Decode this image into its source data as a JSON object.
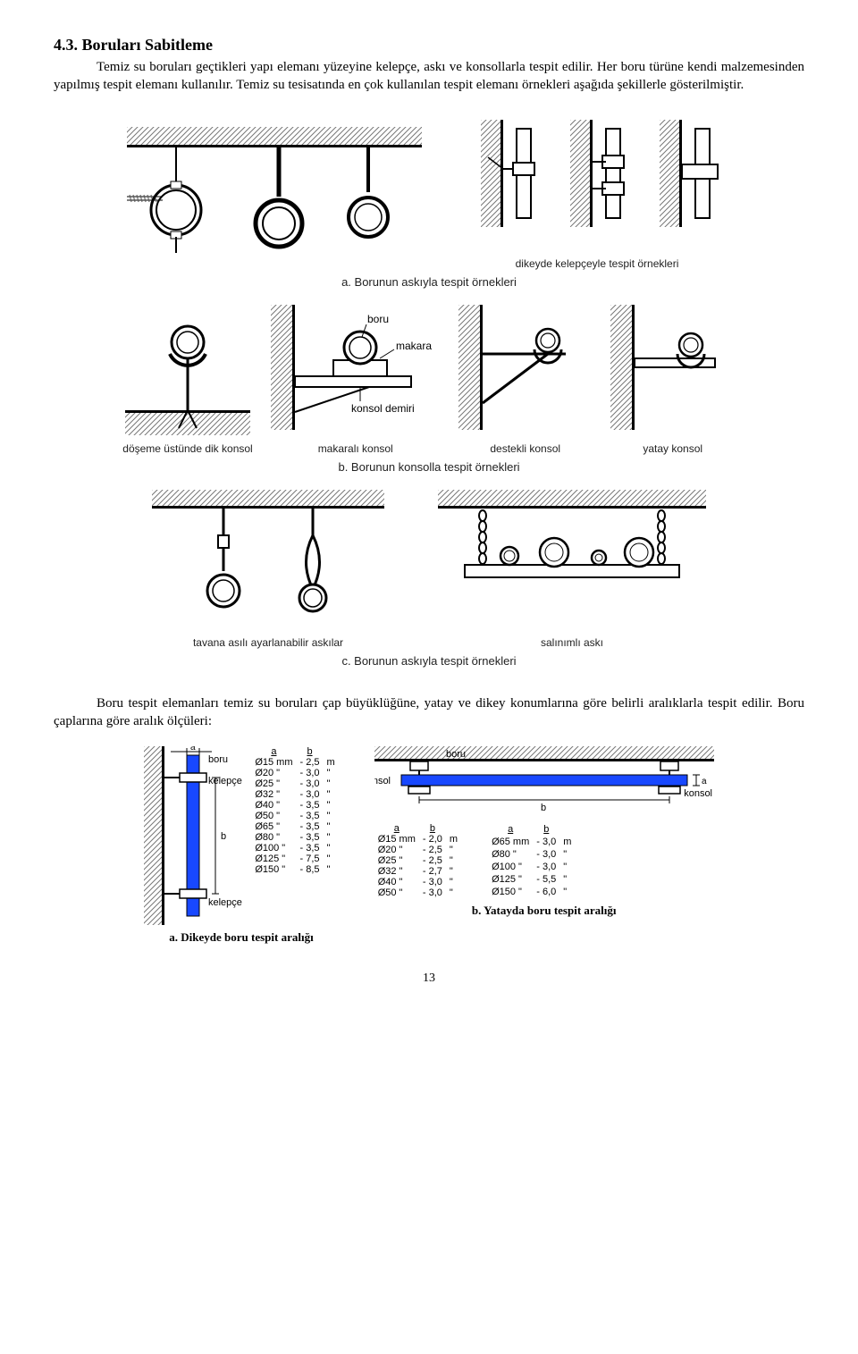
{
  "heading": "4.3. Boruları Sabitleme",
  "para1": "Temiz su boruları geçtikleri yapı elemanı yüzeyine kelepçe, askı ve konsollarla tespit edilir. Her boru türüne kendi malzemesinden yapılmış tespit elemanı kullanılır. Temiz su tesisatında en çok kullanılan tespit elemanı örnekleri aşağıda şekillerle gösterilmiştir.",
  "fig_a_right_label": "dikeyde kelepçeyle tespit örnekleri",
  "fig_a_caption": "a. Borunun askıyla tespit örnekleri",
  "fig_b_labels": {
    "boru": "boru",
    "makara": "makara",
    "konsol_demiri": "konsol demiri",
    "l1": "döşeme üstünde dik konsol",
    "l2": "makaralı konsol",
    "l3": "destekli konsol",
    "l4": "yatay konsol"
  },
  "fig_b_caption": "b. Borunun konsolla tespit örnekleri",
  "fig_c_labels": {
    "l1": "tavana asılı ayarlanabilir askılar",
    "l2": "salınımlı askı"
  },
  "fig_c_caption": "c. Borunun askıyla tespit örnekleri",
  "para2": "Boru tespit elemanları temiz su boruları çap büyüklüğüne, yatay ve dikey konumlarına göre belirli aralıklarla tespit edilir. Boru çaplarına göre aralık ölçüleri:",
  "bottom": {
    "left": {
      "labels": {
        "boru": "boru",
        "kelepce": "kelepçe"
      },
      "col_a": "a",
      "col_b": "b",
      "rows": [
        [
          "Ø15 mm",
          "- 2,5",
          "m"
        ],
        [
          "Ø20  \"",
          "- 3,0",
          "\""
        ],
        [
          "Ø25  \"",
          "- 3,0",
          "\""
        ],
        [
          "Ø32  \"",
          "- 3,0",
          "\""
        ],
        [
          "Ø40  \"",
          "- 3,5",
          "\""
        ],
        [
          "Ø50  \"",
          "- 3,5",
          "\""
        ],
        [
          "Ø65  \"",
          "- 3,5",
          "\""
        ],
        [
          "Ø80  \"",
          "- 3,5",
          "\""
        ],
        [
          "Ø100 \"",
          "- 3,5",
          "\""
        ],
        [
          "Ø125 \"",
          "- 7,5",
          "\""
        ],
        [
          "Ø150 \"",
          "- 8,5",
          "\""
        ]
      ],
      "caption": "a. Dikeyde boru tespit aralığı"
    },
    "right": {
      "labels": {
        "boru": "boru",
        "konsol": "konsol"
      },
      "col_a": "a",
      "col_b": "b",
      "table1": [
        [
          "Ø15 mm",
          "- 2,0",
          "m"
        ],
        [
          "Ø20  \"",
          "- 2,5",
          "\""
        ],
        [
          "Ø25  \"",
          "- 2,5",
          "\""
        ],
        [
          "Ø32  \"",
          "- 2,7",
          "\""
        ],
        [
          "Ø40  \"",
          "- 3,0",
          "\""
        ],
        [
          "Ø50  \"",
          "- 3,0",
          "\""
        ]
      ],
      "table2": [
        [
          "Ø65 mm",
          "- 3,0",
          "m"
        ],
        [
          "Ø80  \"",
          "- 3,0",
          "\""
        ],
        [
          "Ø100 \"",
          "- 3,0",
          "\""
        ],
        [
          "Ø125 \"",
          "- 5,5",
          "\""
        ],
        [
          "Ø150 \"",
          "- 6,0",
          "\""
        ]
      ],
      "caption": "b. Yatayda boru tespit aralığı"
    }
  },
  "page": "13",
  "colors": {
    "stroke": "#000000",
    "hatch": "#888888",
    "pipe_blue": "#1848ff",
    "wall_fill": "#f0f0f0"
  }
}
